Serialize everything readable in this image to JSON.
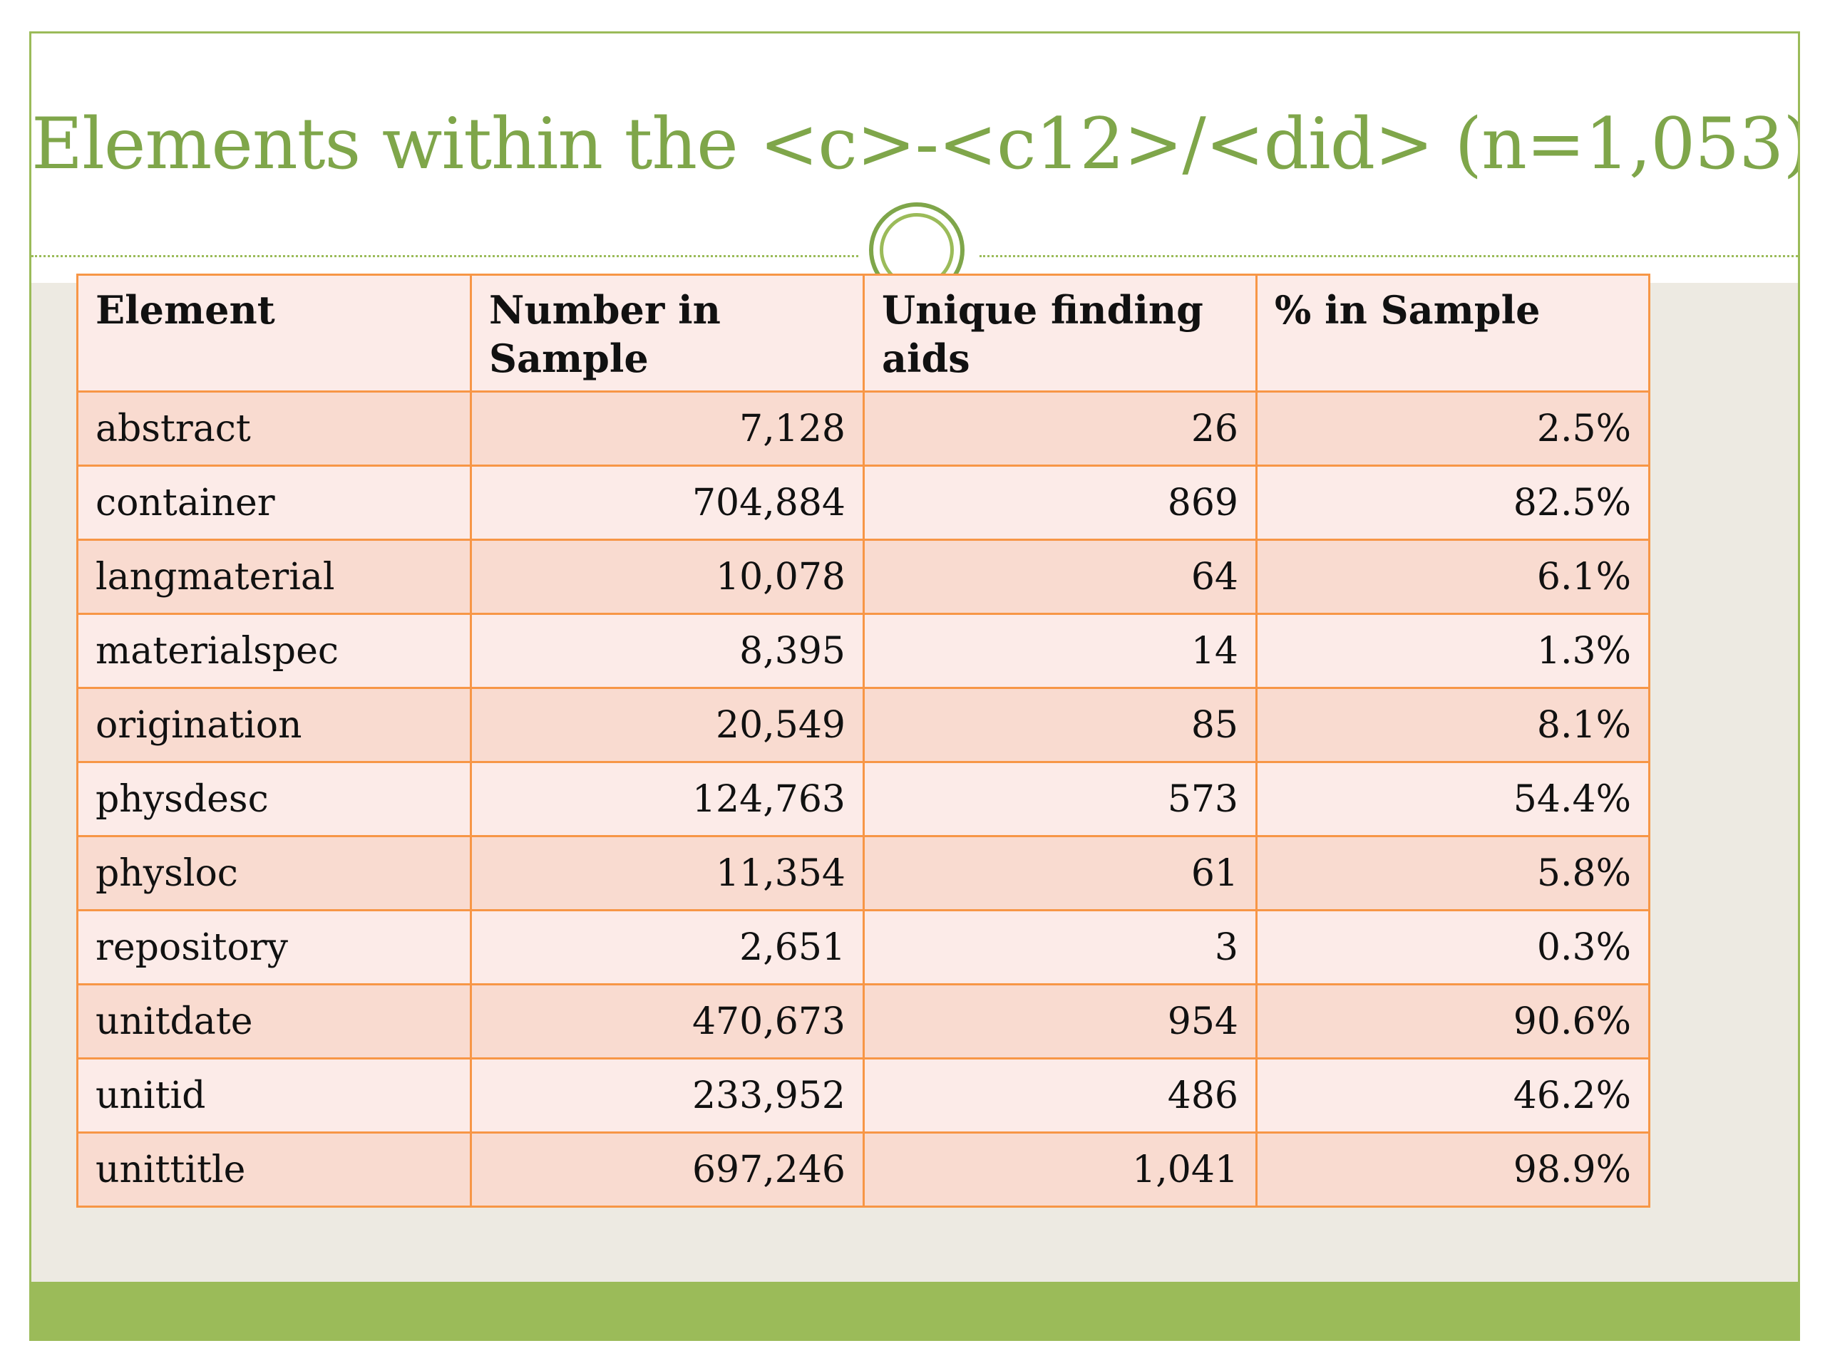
{
  "slide": {
    "title": "Elements within the <c>-<c12>/<did> (n=1,053)"
  },
  "table": {
    "headers": [
      "Element",
      "Number in Sample",
      "Unique finding aids",
      "% in Sample"
    ],
    "rows": [
      [
        "abstract",
        "7,128",
        "26",
        "2.5%"
      ],
      [
        "container",
        "704,884",
        "869",
        "82.5%"
      ],
      [
        "langmaterial",
        "10,078",
        "64",
        "6.1%"
      ],
      [
        "materialspec",
        "8,395",
        "14",
        "1.3%"
      ],
      [
        "origination",
        "20,549",
        "85",
        "8.1%"
      ],
      [
        "physdesc",
        "124,763",
        "573",
        "54.4%"
      ],
      [
        "physloc",
        "11,354",
        "61",
        "5.8%"
      ],
      [
        "repository",
        "2,651",
        "3",
        "0.3%"
      ],
      [
        "unitdate",
        "470,673",
        "954",
        "90.6%"
      ],
      [
        "unitid",
        "233,952",
        "486",
        "46.2%"
      ],
      [
        "unittitle",
        "697,246",
        "1,041",
        "98.9%"
      ]
    ]
  },
  "colors": {
    "accent_green": "#9bbb59",
    "title_green": "#7fa64a",
    "table_border": "#f79646",
    "row_dark": "#f9dbd0",
    "row_light": "#fcebe8",
    "body_background": "#edeae2"
  }
}
